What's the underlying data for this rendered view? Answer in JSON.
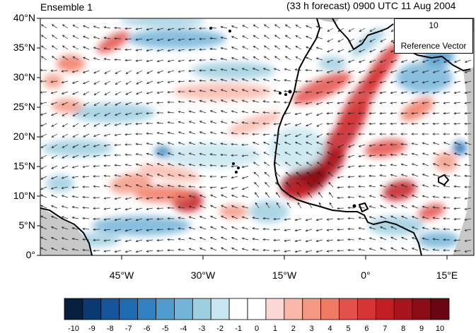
{
  "header": {
    "ensemble_label": "Ensemble 1",
    "forecast_label": "(33 h forecast) 0900 UTC 11 Aug 2004"
  },
  "axes": {
    "lat_labels": [
      "40°N",
      "35°N",
      "30°N",
      "25°N",
      "20°N",
      "15°N",
      "10°N",
      "5°N",
      "0°"
    ],
    "lon_labels": [
      "45°W",
      "30°W",
      "15°W",
      "0°",
      "15°E"
    ]
  },
  "reference_vector": {
    "magnitude": "10",
    "label": "Reference Vector"
  },
  "colorbar": {
    "labels": [
      "-10",
      "-9",
      "-8",
      "-7",
      "-6",
      "-5",
      "-4",
      "-3",
      "-2",
      "-1",
      "0",
      "1",
      "2",
      "3",
      "4",
      "5",
      "6",
      "7",
      "8",
      "9",
      "10"
    ],
    "colors": [
      "#08203f",
      "#0b3a72",
      "#14559b",
      "#1f6cb3",
      "#3282c0",
      "#4f9ccd",
      "#74b4d8",
      "#9dcfe1",
      "#c8e6f0",
      "#ffffff",
      "#ffffff",
      "#fcd8d4",
      "#f8b9ab",
      "#f59883",
      "#f07a63",
      "#e3524a",
      "#d53535",
      "#c21f25",
      "#a8141d",
      "#8a0d18",
      "#680611"
    ]
  },
  "map": {
    "lat_range": [
      0,
      40
    ],
    "lon_range": [
      -60,
      20
    ],
    "colors": {
      "land_mask": "#c8c8c8",
      "coast": "#000000",
      "vector": "#222222"
    }
  }
}
